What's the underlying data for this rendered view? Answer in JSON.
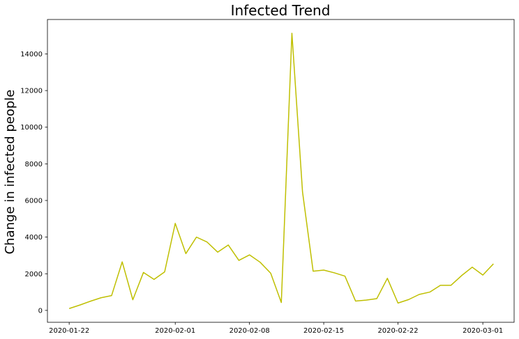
{
  "chart_data": {
    "type": "line",
    "title": "Infected Trend",
    "xlabel": "",
    "ylabel": "Change in infected people",
    "line_color": "#bfbf00",
    "x_start": "2020-01-22",
    "x": [
      "2020-01-22",
      "2020-01-23",
      "2020-01-24",
      "2020-01-25",
      "2020-01-26",
      "2020-01-27",
      "2020-01-28",
      "2020-01-29",
      "2020-01-30",
      "2020-01-31",
      "2020-02-01",
      "2020-02-02",
      "2020-02-03",
      "2020-02-04",
      "2020-02-05",
      "2020-02-06",
      "2020-02-07",
      "2020-02-08",
      "2020-02-09",
      "2020-02-10",
      "2020-02-11",
      "2020-02-12",
      "2020-02-13",
      "2020-02-14",
      "2020-02-15",
      "2020-02-16",
      "2020-02-17",
      "2020-02-18",
      "2020-02-19",
      "2020-02-20",
      "2020-02-21",
      "2020-02-22",
      "2020-02-23",
      "2020-02-24",
      "2020-02-25",
      "2020-02-26",
      "2020-02-27",
      "2020-02-28",
      "2020-02-29",
      "2020-03-01",
      "2020-03-02",
      "2020-03-03"
    ],
    "values": [
      100,
      290,
      500,
      690,
      810,
      2650,
      580,
      2070,
      1690,
      2100,
      4750,
      3100,
      4000,
      3730,
      3180,
      3570,
      2730,
      3030,
      2630,
      2030,
      430,
      15130,
      6470,
      2140,
      2200,
      2050,
      1870,
      510,
      560,
      640,
      1750,
      400,
      590,
      870,
      1000,
      1370,
      1370,
      1900,
      2360,
      1930,
      2540,
      null
    ],
    "x_ticks": [
      {
        "label": "2020-01-22",
        "day": 0
      },
      {
        "label": "2020-02-01",
        "day": 10
      },
      {
        "label": "2020-02-08",
        "day": 17
      },
      {
        "label": "2020-02-15",
        "day": 24
      },
      {
        "label": "2020-02-22",
        "day": 31
      },
      {
        "label": "2020-03-01",
        "day": 39
      }
    ],
    "y_ticks": [
      0,
      2000,
      4000,
      6000,
      8000,
      10000,
      12000,
      14000
    ],
    "xlim": [
      -2.05,
      41.95
    ],
    "ylim": [
      -650,
      15880
    ],
    "grid": false,
    "legend": "none"
  }
}
